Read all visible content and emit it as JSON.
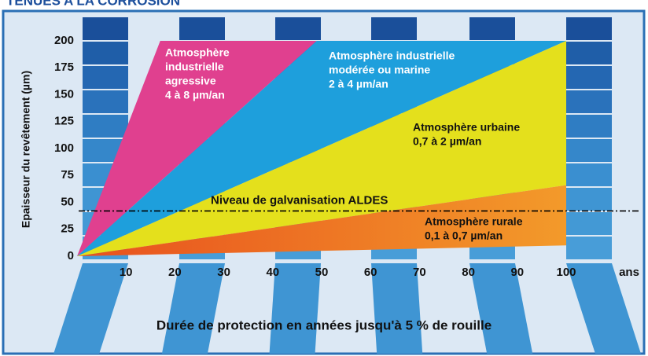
{
  "chart_data": {
    "type": "region",
    "title": "TENUES A LA CORROSION",
    "xlabel": "Durée de protection en années jusqu'à 5 % de rouille",
    "xunit": "ans",
    "ylabel": "Epaisseur du revêtement (µm)",
    "xlim": [
      0,
      100
    ],
    "ylim": [
      0,
      200
    ],
    "xticks": [
      10,
      20,
      30,
      40,
      50,
      60,
      70,
      80,
      90,
      100
    ],
    "yticks": [
      0,
      25,
      50,
      75,
      100,
      125,
      150,
      175,
      200
    ],
    "series": [
      {
        "label": [
          "Atmosphère",
          "industrielle",
          "agressive",
          "4 à 8 µm/an"
        ],
        "color": "#e0408f",
        "x": [
          0,
          17,
          49
        ],
        "values": [
          0,
          200,
          200
        ]
      },
      {
        "label": [
          "Atmosphère industrielle",
          "modérée ou marine",
          "2 à 4 µm/an"
        ],
        "color": "#1e9fdc",
        "x": [
          0,
          49,
          100
        ],
        "values": [
          0,
          200,
          200
        ]
      },
      {
        "label": [
          "Atmosphère urbaine",
          "0,7 à 2 µm/an"
        ],
        "color": "#e4e01c",
        "x": [
          0,
          100,
          100
        ],
        "values": [
          0,
          200,
          66
        ]
      },
      {
        "label": [
          "Atmosphère rurale",
          "0,1 à 0,7 µm/an"
        ],
        "color": "#f07a22",
        "x": [
          0,
          100,
          100
        ],
        "values": [
          0,
          66,
          10
        ]
      }
    ],
    "annotation": {
      "text": "Niveau de galvanisation ALDES",
      "y": 42
    }
  }
}
